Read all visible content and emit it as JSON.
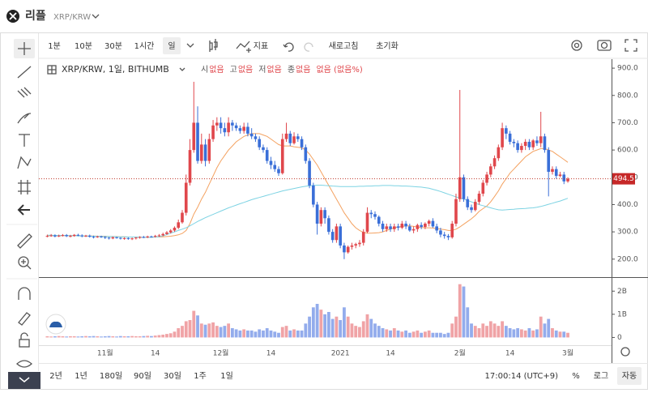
{
  "header": {
    "title": "리플",
    "symbol": "XRP/KRW"
  },
  "toolbar": {
    "intervals": [
      "1분",
      "10분",
      "30분",
      "1시간",
      "일"
    ],
    "indicators": "지표",
    "refresh": "새로고침",
    "reset": "초기화"
  },
  "legend": {
    "fields": [
      {
        "label": "시",
        "value": "없음"
      },
      {
        "label": "고",
        "value": "없음"
      },
      {
        "label": "저",
        "value": "없음"
      },
      {
        "label": "종",
        "value": "없음"
      }
    ],
    "change": "없음 (없음%)"
  },
  "bottom_bar": {
    "ranges": [
      "2년",
      "1년",
      "180일",
      "90일",
      "30일",
      "1주",
      "1일"
    ],
    "time": "17:00:14 (UTC+9)",
    "percent": "%",
    "log": "로그",
    "auto": "자동"
  },
  "chart_data": {
    "type": "candlestick",
    "title": "XRP/KRW, 1일, BITHUMB",
    "categories": [
      null,
      null,
      null,
      null,
      null,
      null,
      null,
      null,
      null,
      null,
      null,
      null,
      null,
      null,
      null,
      "11월",
      null,
      null,
      null,
      null,
      null,
      null,
      null,
      null,
      null,
      null,
      null,
      null,
      "14",
      null,
      null,
      null,
      null,
      null,
      null,
      null,
      null,
      null,
      null,
      null,
      null,
      null,
      null,
      null,
      null,
      "12월",
      null,
      null,
      null,
      null,
      null,
      null,
      null,
      null,
      null,
      null,
      null,
      null,
      "14",
      null,
      null,
      null,
      null,
      null,
      null,
      null,
      null,
      null,
      null,
      null,
      null,
      null,
      null,
      null,
      null,
      null,
      "2021",
      null,
      null,
      null,
      null,
      null,
      null,
      null,
      null,
      null,
      null,
      null,
      null,
      "14",
      null,
      null,
      null,
      null,
      null,
      null,
      null,
      null,
      null,
      null,
      null,
      null,
      null,
      null,
      null,
      null,
      null,
      "2월",
      null,
      null,
      null,
      null,
      null,
      null,
      null,
      null,
      null,
      null,
      null,
      null,
      "14",
      null,
      null,
      null,
      null,
      null,
      null,
      null,
      null,
      null,
      null,
      null,
      null,
      null,
      null,
      "3월"
    ],
    "open": [
      283,
      285,
      287,
      283,
      286,
      288,
      284,
      285,
      289,
      287,
      284,
      286,
      282,
      280,
      283,
      281,
      279,
      276,
      280,
      278,
      275,
      277,
      274,
      276,
      279,
      281,
      280,
      283,
      282,
      285,
      287,
      292,
      298,
      305,
      315,
      335,
      370,
      480,
      600,
      700,
      560,
      620,
      560,
      640,
      690,
      700,
      680,
      665,
      700,
      690,
      680,
      670,
      685,
      660,
      650,
      640,
      610,
      600,
      560,
      545,
      530,
      515,
      640,
      660,
      625,
      650,
      640,
      610,
      560,
      470,
      400,
      330,
      380,
      350,
      300,
      270,
      320,
      250,
      225,
      245,
      250,
      255,
      260,
      300,
      370,
      365,
      355,
      330,
      310,
      320,
      310,
      320,
      315,
      330,
      320,
      305,
      310,
      325,
      318,
      330,
      340,
      320,
      305,
      290,
      285,
      280,
      330,
      420,
      500,
      420,
      390,
      380,
      410,
      440,
      480,
      510,
      540,
      570,
      610,
      680,
      660,
      630,
      625,
      600,
      615,
      630,
      610,
      635,
      625,
      650,
      600,
      520,
      530,
      505,
      510,
      485
    ],
    "high": [
      290,
      292,
      291,
      290,
      292,
      292,
      289,
      292,
      293,
      291,
      289,
      290,
      286,
      286,
      286,
      284,
      281,
      283,
      282,
      280,
      280,
      280,
      279,
      281,
      284,
      285,
      286,
      286,
      289,
      292,
      297,
      303,
      310,
      320,
      345,
      380,
      510,
      640,
      850,
      760,
      660,
      640,
      660,
      710,
      720,
      720,
      700,
      720,
      710,
      700,
      690,
      700,
      700,
      680,
      660,
      650,
      620,
      610,
      575,
      560,
      540,
      660,
      700,
      670,
      665,
      660,
      650,
      620,
      570,
      480,
      410,
      390,
      390,
      360,
      310,
      330,
      330,
      260,
      250,
      260,
      260,
      270,
      310,
      390,
      380,
      375,
      360,
      340,
      330,
      330,
      330,
      330,
      340,
      340,
      330,
      320,
      330,
      335,
      335,
      345,
      350,
      330,
      315,
      300,
      292,
      340,
      440,
      820,
      510,
      430,
      400,
      420,
      450,
      490,
      520,
      550,
      580,
      620,
      700,
      690,
      670,
      640,
      635,
      625,
      640,
      640,
      640,
      650,
      740,
      660,
      610,
      540,
      540,
      520,
      520,
      500
    ],
    "low": [
      280,
      282,
      280,
      281,
      283,
      281,
      280,
      282,
      284,
      280,
      281,
      279,
      276,
      278,
      278,
      274,
      272,
      273,
      275,
      272,
      271,
      271,
      270,
      272,
      275,
      277,
      277,
      279,
      279,
      282,
      284,
      289,
      294,
      300,
      310,
      330,
      360,
      470,
      590,
      550,
      550,
      540,
      550,
      630,
      670,
      660,
      650,
      650,
      670,
      670,
      660,
      660,
      650,
      640,
      630,
      600,
      590,
      550,
      530,
      520,
      505,
      510,
      630,
      615,
      620,
      630,
      600,
      550,
      460,
      390,
      290,
      320,
      330,
      290,
      260,
      260,
      240,
      200,
      220,
      235,
      240,
      245,
      250,
      295,
      350,
      345,
      320,
      300,
      300,
      300,
      300,
      305,
      310,
      310,
      300,
      295,
      300,
      310,
      310,
      320,
      315,
      295,
      280,
      275,
      270,
      275,
      320,
      410,
      410,
      380,
      370,
      375,
      400,
      430,
      470,
      500,
      530,
      560,
      600,
      640,
      620,
      610,
      590,
      590,
      600,
      600,
      600,
      615,
      610,
      590,
      430,
      510,
      495,
      500,
      475,
      480
    ],
    "close": [
      285,
      287,
      283,
      286,
      288,
      284,
      285,
      289,
      287,
      284,
      286,
      282,
      280,
      283,
      281,
      279,
      276,
      280,
      278,
      275,
      277,
      274,
      276,
      279,
      281,
      280,
      283,
      282,
      285,
      287,
      292,
      298,
      305,
      315,
      335,
      370,
      480,
      600,
      700,
      560,
      620,
      560,
      640,
      690,
      700,
      680,
      665,
      700,
      690,
      680,
      670,
      685,
      660,
      650,
      640,
      610,
      600,
      560,
      545,
      530,
      515,
      640,
      660,
      625,
      650,
      640,
      610,
      560,
      470,
      400,
      330,
      380,
      350,
      300,
      270,
      320,
      250,
      225,
      245,
      250,
      255,
      260,
      300,
      370,
      365,
      355,
      330,
      310,
      320,
      310,
      320,
      315,
      330,
      320,
      305,
      310,
      325,
      318,
      330,
      340,
      320,
      305,
      290,
      285,
      280,
      330,
      420,
      500,
      420,
      390,
      380,
      410,
      440,
      480,
      510,
      540,
      570,
      610,
      680,
      660,
      630,
      625,
      600,
      615,
      630,
      610,
      635,
      625,
      650,
      600,
      520,
      530,
      505,
      510,
      485,
      494.5
    ],
    "up_color": "#e0474c",
    "down_color": "#3a6fd8",
    "series": [
      {
        "color": "#f4a261",
        "values": [
          286,
          286,
          286,
          286,
          286,
          286,
          286,
          286,
          286,
          285,
          285,
          285,
          285,
          284,
          284,
          284,
          283,
          283,
          283,
          282,
          282,
          281,
          281,
          281,
          280,
          280,
          280,
          280,
          281,
          281,
          282,
          283,
          284,
          286,
          289,
          294,
          305,
          330,
          365,
          390,
          420,
          445,
          475,
          505,
          535,
          560,
          580,
          600,
          615,
          630,
          640,
          650,
          655,
          660,
          660,
          660,
          655,
          650,
          640,
          630,
          620,
          615,
          615,
          615,
          612,
          610,
          608,
          600,
          585,
          565,
          545,
          520,
          495,
          470,
          445,
          420,
          395,
          370,
          350,
          330,
          315,
          305,
          298,
          295,
          295,
          296,
          297,
          300,
          305,
          310,
          315,
          318,
          320,
          322,
          322,
          320,
          318,
          316,
          315,
          315,
          314,
          312,
          310,
          308,
          305,
          305,
          310,
          318,
          328,
          338,
          348,
          360,
          375,
          385,
          395,
          410,
          430,
          450,
          475,
          495,
          515,
          530,
          545,
          560,
          575,
          585,
          595,
          600,
          605,
          605,
          600,
          595,
          585,
          575,
          565,
          555
        ]
      },
      {
        "color": "#7dd3e3",
        "values": [
          288,
          288,
          287,
          287,
          287,
          286,
          286,
          286,
          285,
          285,
          285,
          284,
          284,
          284,
          283,
          283,
          283,
          283,
          282,
          282,
          282,
          281,
          281,
          281,
          281,
          280,
          280,
          280,
          281,
          282,
          285,
          290,
          295,
          300,
          305,
          310,
          315,
          322,
          330,
          338,
          345,
          352,
          358,
          364,
          370,
          376,
          382,
          388,
          393,
          398,
          403,
          408,
          413,
          418,
          422,
          426,
          430,
          434,
          438,
          442,
          446,
          450,
          453,
          456,
          459,
          462,
          465,
          467,
          469,
          470,
          471,
          471,
          470,
          469,
          468,
          467,
          466,
          466,
          466,
          466,
          466,
          467,
          467,
          468,
          468,
          469,
          469,
          470,
          470,
          470,
          469,
          469,
          468,
          468,
          467,
          466,
          465,
          464,
          462,
          460,
          456,
          452,
          448,
          443,
          438,
          433,
          428,
          424,
          420,
          415,
          410,
          405,
          400,
          396,
          392,
          388,
          384,
          381,
          380,
          381,
          382,
          383,
          384,
          385,
          386,
          387,
          388,
          390,
          393,
          397,
          401,
          405,
          409,
          413,
          418,
          423
        ]
      }
    ],
    "ylim": [
      140,
      930
    ],
    "yticks": [
      {
        "value": 200,
        "label": "200.0"
      },
      {
        "value": 300,
        "label": "300.0"
      },
      {
        "value": 400,
        "label": "400.0"
      },
      {
        "value": 500,
        "label": "500.0"
      },
      {
        "value": 600,
        "label": "600.0"
      },
      {
        "value": 700,
        "label": "700.0"
      },
      {
        "value": 800,
        "label": "800.0"
      },
      {
        "value": 900,
        "label": "900.0"
      }
    ],
    "grid": false,
    "volume": {
      "values": [
        0.05,
        0.04,
        0.05,
        0.06,
        0.05,
        0.04,
        0.05,
        0.05,
        0.04,
        0.05,
        0.06,
        0.05,
        0.06,
        0.05,
        0.04,
        0.05,
        0.06,
        0.05,
        0.04,
        0.06,
        0.05,
        0.05,
        0.06,
        0.05,
        0.05,
        0.06,
        0.07,
        0.06,
        0.08,
        0.1,
        0.12,
        0.15,
        0.18,
        0.25,
        0.4,
        0.5,
        0.7,
        0.75,
        1.15,
        0.95,
        0.6,
        0.55,
        0.6,
        0.65,
        0.5,
        0.45,
        0.5,
        0.6,
        0.4,
        0.35,
        0.3,
        0.35,
        0.3,
        0.3,
        0.25,
        0.35,
        0.3,
        0.4,
        0.3,
        0.25,
        0.2,
        0.45,
        0.5,
        0.3,
        0.35,
        0.3,
        0.3,
        0.6,
        0.9,
        1.3,
        1.45,
        1.2,
        1.0,
        1.1,
        0.8,
        0.9,
        0.75,
        1.3,
        0.9,
        0.6,
        0.5,
        0.45,
        0.7,
        1.0,
        0.8,
        0.6,
        0.5,
        0.4,
        0.35,
        0.3,
        0.4,
        0.3,
        0.25,
        0.3,
        0.2,
        0.25,
        0.3,
        0.2,
        0.25,
        0.3,
        0.2,
        0.2,
        0.2,
        0.15,
        0.2,
        0.6,
        0.9,
        2.3,
        2.2,
        1.3,
        0.6,
        0.5,
        0.4,
        0.6,
        0.5,
        0.7,
        0.6,
        0.5,
        0.7,
        0.5,
        0.4,
        0.35,
        0.4,
        0.35,
        0.3,
        0.4,
        0.3,
        0.35,
        0.9,
        0.6,
        0.8,
        0.4,
        0.3,
        0.25,
        0.25,
        0.2
      ],
      "up_color": "#f0a3a6",
      "down_color": "#93acec",
      "ylim": [
        -0.3,
        2.5
      ],
      "yticks": [
        0,
        {
          "value": 1,
          "label": "1B"
        },
        {
          "value": 2,
          "label": "2B"
        }
      ]
    }
  }
}
